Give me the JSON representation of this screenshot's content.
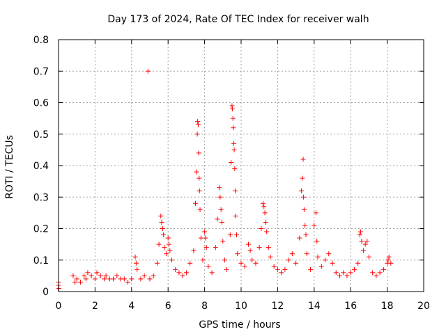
{
  "chart_data": {
    "type": "scatter",
    "title": "Day 173 of 2024, Rate Of TEC Index for receiver walh",
    "xlabel": "GPS time / hours",
    "ylabel": "ROTI / TECUs",
    "xlim": [
      0,
      20
    ],
    "ylim": [
      0,
      0.8
    ],
    "x_ticks": [
      "0",
      "2",
      "4",
      "6",
      "8",
      "10",
      "12",
      "14",
      "16",
      "18",
      "20"
    ],
    "y_ticks": [
      "0",
      "0.1",
      "0.2",
      "0.3",
      "0.4",
      "0.5",
      "0.6",
      "0.7",
      "0.8"
    ],
    "grid": true,
    "marker": "+",
    "series": [
      {
        "name": "ROTI",
        "color": "#ff0000",
        "points": [
          [
            0.0,
            0.03
          ],
          [
            0.0,
            0.02
          ],
          [
            0.02,
            0.01
          ],
          [
            0.8,
            0.05
          ],
          [
            0.9,
            0.03
          ],
          [
            1.0,
            0.04
          ],
          [
            1.2,
            0.03
          ],
          [
            1.4,
            0.05
          ],
          [
            1.5,
            0.04
          ],
          [
            1.6,
            0.06
          ],
          [
            1.8,
            0.05
          ],
          [
            2.0,
            0.04
          ],
          [
            2.1,
            0.06
          ],
          [
            2.3,
            0.05
          ],
          [
            2.5,
            0.04
          ],
          [
            2.6,
            0.05
          ],
          [
            2.8,
            0.04
          ],
          [
            3.0,
            0.04
          ],
          [
            3.2,
            0.05
          ],
          [
            3.4,
            0.04
          ],
          [
            3.6,
            0.04
          ],
          [
            3.8,
            0.03
          ],
          [
            4.0,
            0.04
          ],
          [
            4.2,
            0.11
          ],
          [
            4.25,
            0.09
          ],
          [
            4.3,
            0.07
          ],
          [
            4.5,
            0.04
          ],
          [
            4.7,
            0.05
          ],
          [
            4.9,
            0.7
          ],
          [
            5.0,
            0.04
          ],
          [
            5.2,
            0.05
          ],
          [
            5.4,
            0.09
          ],
          [
            5.5,
            0.15
          ],
          [
            5.6,
            0.24
          ],
          [
            5.65,
            0.22
          ],
          [
            5.7,
            0.2
          ],
          [
            5.75,
            0.18
          ],
          [
            5.8,
            0.14
          ],
          [
            5.9,
            0.12
          ],
          [
            6.0,
            0.17
          ],
          [
            6.05,
            0.15
          ],
          [
            6.1,
            0.13
          ],
          [
            6.2,
            0.1
          ],
          [
            6.4,
            0.07
          ],
          [
            6.6,
            0.06
          ],
          [
            6.8,
            0.05
          ],
          [
            7.0,
            0.06
          ],
          [
            7.2,
            0.09
          ],
          [
            7.4,
            0.13
          ],
          [
            7.5,
            0.28
          ],
          [
            7.55,
            0.38
          ],
          [
            7.6,
            0.5
          ],
          [
            7.62,
            0.54
          ],
          [
            7.65,
            0.53
          ],
          [
            7.68,
            0.44
          ],
          [
            7.7,
            0.36
          ],
          [
            7.72,
            0.32
          ],
          [
            7.75,
            0.26
          ],
          [
            7.8,
            0.17
          ],
          [
            7.9,
            0.1
          ],
          [
            8.0,
            0.19
          ],
          [
            8.05,
            0.17
          ],
          [
            8.1,
            0.14
          ],
          [
            8.2,
            0.08
          ],
          [
            8.4,
            0.06
          ],
          [
            8.6,
            0.14
          ],
          [
            8.7,
            0.23
          ],
          [
            8.8,
            0.33
          ],
          [
            8.85,
            0.3
          ],
          [
            8.9,
            0.26
          ],
          [
            8.95,
            0.22
          ],
          [
            9.0,
            0.16
          ],
          [
            9.1,
            0.1
          ],
          [
            9.2,
            0.07
          ],
          [
            9.4,
            0.18
          ],
          [
            9.45,
            0.41
          ],
          [
            9.5,
            0.59
          ],
          [
            9.52,
            0.58
          ],
          [
            9.55,
            0.55
          ],
          [
            9.57,
            0.52
          ],
          [
            9.6,
            0.47
          ],
          [
            9.62,
            0.45
          ],
          [
            9.65,
            0.39
          ],
          [
            9.68,
            0.32
          ],
          [
            9.7,
            0.24
          ],
          [
            9.75,
            0.18
          ],
          [
            9.8,
            0.12
          ],
          [
            10.0,
            0.09
          ],
          [
            10.2,
            0.08
          ],
          [
            10.4,
            0.15
          ],
          [
            10.5,
            0.13
          ],
          [
            10.6,
            0.1
          ],
          [
            10.8,
            0.09
          ],
          [
            11.0,
            0.14
          ],
          [
            11.1,
            0.2
          ],
          [
            11.2,
            0.28
          ],
          [
            11.25,
            0.27
          ],
          [
            11.3,
            0.25
          ],
          [
            11.35,
            0.22
          ],
          [
            11.4,
            0.19
          ],
          [
            11.5,
            0.14
          ],
          [
            11.6,
            0.11
          ],
          [
            11.8,
            0.08
          ],
          [
            12.0,
            0.07
          ],
          [
            12.2,
            0.06
          ],
          [
            12.4,
            0.07
          ],
          [
            12.6,
            0.1
          ],
          [
            12.8,
            0.12
          ],
          [
            13.0,
            0.09
          ],
          [
            13.2,
            0.17
          ],
          [
            13.3,
            0.32
          ],
          [
            13.35,
            0.36
          ],
          [
            13.4,
            0.42
          ],
          [
            13.42,
            0.3
          ],
          [
            13.45,
            0.26
          ],
          [
            13.5,
            0.21
          ],
          [
            13.55,
            0.18
          ],
          [
            13.6,
            0.12
          ],
          [
            13.8,
            0.07
          ],
          [
            14.0,
            0.21
          ],
          [
            14.1,
            0.25
          ],
          [
            14.15,
            0.16
          ],
          [
            14.2,
            0.11
          ],
          [
            14.4,
            0.08
          ],
          [
            14.6,
            0.1
          ],
          [
            14.8,
            0.12
          ],
          [
            15.0,
            0.09
          ],
          [
            15.2,
            0.06
          ],
          [
            15.4,
            0.05
          ],
          [
            15.6,
            0.06
          ],
          [
            15.8,
            0.05
          ],
          [
            16.0,
            0.06
          ],
          [
            16.2,
            0.07
          ],
          [
            16.4,
            0.09
          ],
          [
            16.5,
            0.18
          ],
          [
            16.55,
            0.19
          ],
          [
            16.6,
            0.16
          ],
          [
            16.7,
            0.13
          ],
          [
            16.8,
            0.15
          ],
          [
            16.9,
            0.16
          ],
          [
            17.0,
            0.11
          ],
          [
            17.2,
            0.06
          ],
          [
            17.4,
            0.05
          ],
          [
            17.6,
            0.06
          ],
          [
            17.8,
            0.07
          ],
          [
            18.0,
            0.09
          ],
          [
            18.05,
            0.1
          ],
          [
            18.1,
            0.11
          ],
          [
            18.2,
            0.09
          ]
        ]
      }
    ]
  }
}
